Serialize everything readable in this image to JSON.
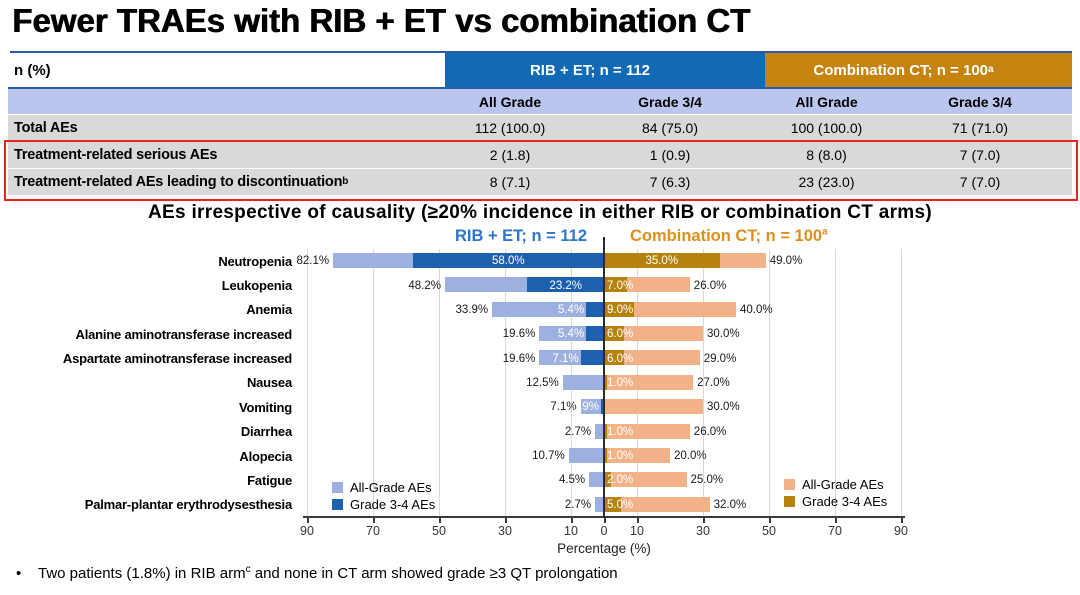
{
  "slide": {
    "title": "Fewer TRAEs with RIB + ET vs combination CT",
    "accent_rule_color": "#2b5ca8"
  },
  "table": {
    "corner_label": "n (%)",
    "group_headers": [
      {
        "label": "RIB + ET; n = 112",
        "sup": "",
        "color": "#1269b4"
      },
      {
        "label": "Combination CT; n = 100",
        "sup": "a",
        "color": "#c5830f"
      }
    ],
    "subheaders": [
      "All Grade",
      "Grade 3/4",
      "All Grade",
      "Grade 3/4"
    ],
    "rows": [
      {
        "label": "Total AEs",
        "sup": "",
        "values": [
          "112 (100.0)",
          "84 (75.0)",
          "100 (100.0)",
          "71 (71.0)"
        ]
      },
      {
        "label": "Treatment-related serious AEs",
        "sup": "",
        "values": [
          "2 (1.8)",
          "1 (0.9)",
          "8 (8.0)",
          "7 (7.0)"
        ]
      },
      {
        "label": "Treatment-related AEs leading to discontinuation",
        "sup": "b",
        "values": [
          "8 (7.1)",
          "7 (6.3)",
          "23 (23.0)",
          "7 (7.0)"
        ]
      }
    ],
    "highlight_box_color": "#e8231f",
    "subheader_bg": "#bac6ee",
    "row_bg": "#d9d9d9"
  },
  "chart": {
    "title": "AEs irrespective of causality (≥20% incidence in either RIB or combination CT arms)"
  },
  "chart_data": {
    "type": "bar",
    "variant": "tornado",
    "categories": [
      "Neutropenia",
      "Leukopenia",
      "Anemia",
      "Alanine aminotransferase increased",
      "Aspartate aminotransferase increased",
      "Nausea",
      "Vomiting",
      "Diarrhea",
      "Alopecia",
      "Fatigue",
      "Palmar-plantar erythrodysesthesia"
    ],
    "series": [
      {
        "name": "RIB + ET All-Grade AEs",
        "side": "left",
        "color": "#9db1e0",
        "values": [
          82.1,
          48.2,
          33.9,
          19.6,
          19.6,
          12.5,
          7.1,
          2.7,
          10.7,
          4.5,
          2.7
        ]
      },
      {
        "name": "RIB + ET Grade 3-4 AEs",
        "side": "left",
        "color": "#1d60ad",
        "values": [
          58.0,
          23.2,
          5.4,
          5.4,
          7.1,
          null,
          0.9,
          null,
          null,
          null,
          null
        ]
      },
      {
        "name": "Combination CT Grade 3-4 AEs",
        "side": "right",
        "color": "#b5830d",
        "values": [
          35.0,
          7.0,
          9.0,
          6.0,
          6.0,
          1.0,
          null,
          1.0,
          1.0,
          2.0,
          5.0
        ]
      },
      {
        "name": "Combination CT All-Grade AEs",
        "side": "right",
        "color": "#f2b287",
        "values": [
          49.0,
          26.0,
          40.0,
          30.0,
          29.0,
          27.0,
          30.0,
          26.0,
          20.0,
          25.0,
          32.0
        ]
      }
    ],
    "arm_headers": [
      {
        "label": "RIB + ET; n = 112",
        "sup": "",
        "color": "#2e75c8"
      },
      {
        "label": "Combination CT; n = 100",
        "sup": "a",
        "color": "#dd8f1c"
      }
    ],
    "legend_left": [
      {
        "label": "All-Grade AEs",
        "color": "#9db1e0"
      },
      {
        "label": "Grade 3-4 AEs",
        "color": "#1d60ad"
      }
    ],
    "legend_right": [
      {
        "label": "All-Grade AEs",
        "color": "#f2b287"
      },
      {
        "label": "Grade 3-4 AEs",
        "color": "#b5830d"
      }
    ],
    "axis": {
      "tick_values": [
        -90,
        -70,
        -50,
        -30,
        -10,
        0,
        10,
        30,
        50,
        70,
        90
      ],
      "max_per_side": 90,
      "xlabel": "Percentage (%)",
      "grid": true
    }
  },
  "footnote": {
    "bullet": "•",
    "part1": "Two patients (1.8%) in RIB arm",
    "sup": "c",
    "part2": " and none in CT arm showed grade ≥3 QT prolongation"
  }
}
